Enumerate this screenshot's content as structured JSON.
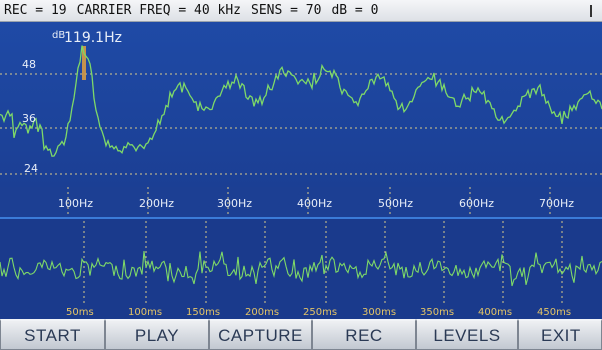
{
  "status": {
    "rec": "REC = 19",
    "carrier": "CARRIER FREQ = 40 kHz",
    "sens": "SENS = 70",
    "db": "dB = 0"
  },
  "spectrum": {
    "unit_label": "dB",
    "peak_label": "119.1Hz",
    "y_labels": [
      "48",
      "36",
      "24"
    ],
    "freq_labels": [
      "100Hz",
      "200Hz",
      "300Hz",
      "400Hz",
      "500Hz",
      "600Hz",
      "700Hz"
    ]
  },
  "time": {
    "labels": [
      "50ms",
      "100ms",
      "150ms",
      "200ms",
      "250ms",
      "300ms",
      "350ms",
      "400ms",
      "450ms"
    ]
  },
  "toolbar": {
    "buttons": [
      "START",
      "PLAY",
      "CAPTURE",
      "REC",
      "LEVELS",
      "EXIT"
    ]
  },
  "colors": {
    "trace": "#7ed968",
    "background": "#1d3d92",
    "grid": "#c9b56a",
    "peak_marker": "#e0a040"
  }
}
